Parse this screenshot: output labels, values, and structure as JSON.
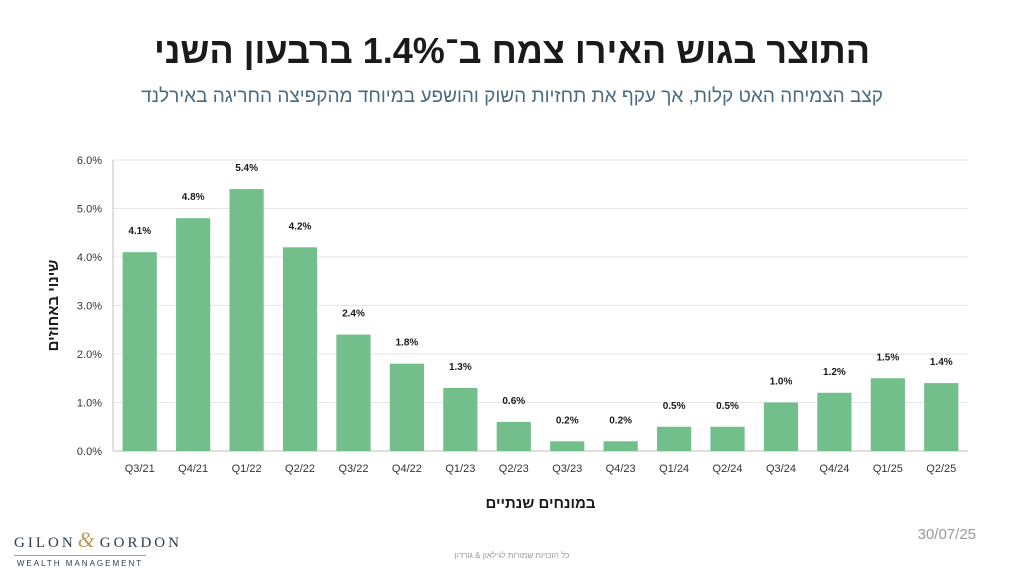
{
  "header": {
    "title": "התוצר בגוש האירו צמח ב־1.4% ברבעון השני",
    "subtitle": "קצב הצמיחה האט קלות, אך עקף את תחזיות השוק והושפע במיוחד מהקפיצה החריגה באירלנד"
  },
  "chart_data": {
    "type": "bar",
    "categories": [
      "Q3/21",
      "Q4/21",
      "Q1/22",
      "Q2/22",
      "Q3/22",
      "Q4/22",
      "Q1/23",
      "Q2/23",
      "Q3/23",
      "Q4/23",
      "Q1/24",
      "Q2/24",
      "Q3/24",
      "Q4/24",
      "Q1/25",
      "Q2/25"
    ],
    "values": [
      4.1,
      4.8,
      5.4,
      4.2,
      2.4,
      1.8,
      1.3,
      0.6,
      0.2,
      0.2,
      0.5,
      0.5,
      1.0,
      1.2,
      1.5,
      1.4
    ],
    "data_labels": [
      "4.1%",
      "4.8%",
      "5.4%",
      "4.2%",
      "2.4%",
      "1.8%",
      "1.3%",
      "0.6%",
      "0.2%",
      "0.2%",
      "0.5%",
      "0.5%",
      "1.0%",
      "1.2%",
      "1.5%",
      "1.4%"
    ],
    "y_ticks": [
      0,
      1,
      2,
      3,
      4,
      5,
      6
    ],
    "y_tick_labels": [
      "0.0%",
      "1.0%",
      "2.0%",
      "3.0%",
      "4.0%",
      "5.0%",
      "6.0%"
    ],
    "ylim": [
      0,
      6
    ],
    "xlabel": "במונחים שנתיים",
    "ylabel": "שינוי באחוזים",
    "bar_color": "#72bf8c",
    "grid": true
  },
  "footer": {
    "logo_main_left": "GILON",
    "logo_amp": "&",
    "logo_main_right": "GORDON",
    "logo_sub": "WEALTH MANAGEMENT",
    "date": "30/07/25",
    "copyright": "כל הזכויות שמורות לגילאון & גורדון"
  }
}
